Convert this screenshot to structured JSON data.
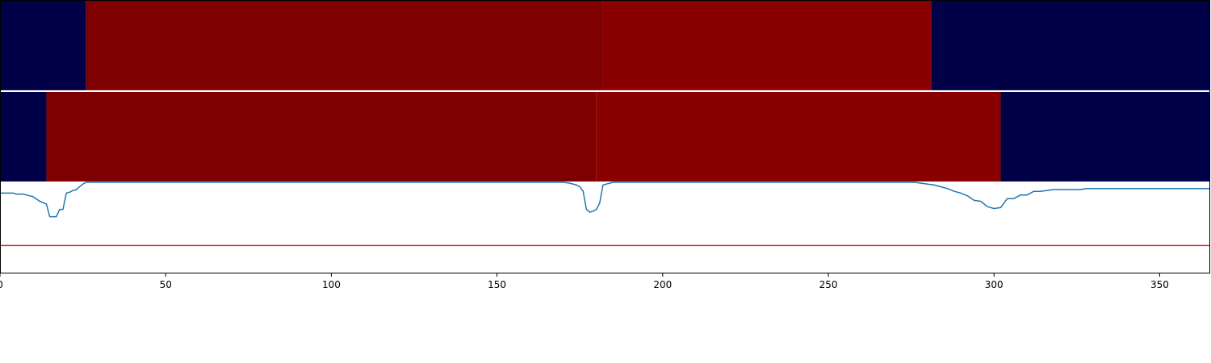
{
  "chart_data": [
    {
      "type": "line",
      "xlim": [
        0,
        365
      ],
      "ylim": [
        0,
        1
      ],
      "x_ticks": [
        0,
        50,
        100,
        150,
        200,
        250,
        300,
        350
      ],
      "tick_labels": [
        "0",
        "50",
        "100",
        "150",
        "200",
        "250",
        "300",
        "350"
      ],
      "grid": false,
      "threshold": {
        "value": 0.3,
        "color": "#d62728"
      },
      "series": [
        {
          "color": "#1f77b4",
          "x": [
            0,
            2,
            4,
            5,
            7,
            9,
            10,
            12,
            14,
            15,
            17,
            18,
            19,
            20,
            21,
            22,
            23,
            24,
            25,
            26,
            170,
            172,
            174,
            175,
            176,
            177,
            178,
            179,
            180,
            181,
            182,
            183,
            184,
            185,
            186,
            187,
            276,
            278,
            280,
            282,
            284,
            286,
            288,
            290,
            292,
            294,
            296,
            298,
            300,
            302,
            304,
            306,
            308,
            310,
            312,
            314,
            316,
            318,
            322,
            326,
            328,
            332,
            334,
            336,
            340,
            345,
            350,
            355,
            360,
            365
          ],
          "y": [
            0.88,
            0.88,
            0.88,
            0.87,
            0.87,
            0.85,
            0.84,
            0.79,
            0.76,
            0.62,
            0.62,
            0.7,
            0.7,
            0.88,
            0.89,
            0.91,
            0.92,
            0.95,
            0.98,
            1.0,
            1.0,
            0.99,
            0.97,
            0.95,
            0.9,
            0.7,
            0.67,
            0.68,
            0.7,
            0.77,
            0.97,
            0.98,
            0.99,
            1.0,
            1.0,
            1.0,
            1.0,
            0.99,
            0.98,
            0.97,
            0.95,
            0.93,
            0.9,
            0.88,
            0.85,
            0.8,
            0.79,
            0.73,
            0.71,
            0.72,
            0.82,
            0.82,
            0.86,
            0.86,
            0.9,
            0.9,
            0.91,
            0.92,
            0.92,
            0.92,
            0.93,
            0.93,
            0.93,
            0.93,
            0.93,
            0.93,
            0.93,
            0.93,
            0.93,
            0.93
          ]
        }
      ]
    },
    {
      "type": "heatmap",
      "rows": [
        {
          "segments": [
            {
              "start": 0,
              "end": 26,
              "color": "#000046"
            },
            {
              "start": 26,
              "end": 182,
              "color": "#7f0000"
            },
            {
              "start": 182,
              "end": 281,
              "color": "#8a0000"
            },
            {
              "start": 281,
              "end": 365,
              "color": "#000046"
            }
          ]
        },
        {
          "segments": [
            {
              "start": 0,
              "end": 14,
              "color": "#000046"
            },
            {
              "start": 14,
              "end": 180,
              "color": "#7f0000"
            },
            {
              "start": 180,
              "end": 302,
              "color": "#8a0000"
            },
            {
              "start": 302,
              "end": 365,
              "color": "#000046"
            }
          ]
        }
      ]
    }
  ]
}
